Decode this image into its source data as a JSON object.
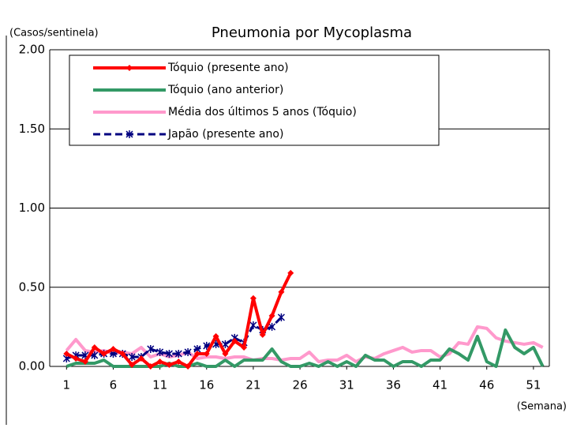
{
  "chart_data": {
    "type": "line",
    "title": "Pneumonia por Mycoplasma",
    "y_label": "(Casos/sentinela)",
    "x_label": "(Semana)",
    "x": [
      1,
      2,
      3,
      4,
      5,
      6,
      7,
      8,
      9,
      10,
      11,
      12,
      13,
      14,
      15,
      16,
      17,
      18,
      19,
      20,
      21,
      22,
      23,
      24,
      25,
      26,
      27,
      28,
      29,
      30,
      31,
      32,
      33,
      34,
      35,
      36,
      37,
      38,
      39,
      40,
      41,
      42,
      43,
      44,
      45,
      46,
      47,
      48,
      49,
      50,
      51,
      52
    ],
    "xlim": [
      -0.8,
      52.7
    ],
    "xticks": [
      1,
      6,
      11,
      16,
      21,
      26,
      31,
      36,
      41,
      46,
      51
    ],
    "ylim": [
      0,
      2
    ],
    "yticks": [
      {
        "value": 0,
        "label": "0.00"
      },
      {
        "value": 0.5,
        "label": "0.50"
      },
      {
        "value": 1,
        "label": "1.00"
      },
      {
        "value": 1.5,
        "label": "1.50"
      },
      {
        "value": 2,
        "label": "2.00"
      }
    ],
    "grid": true,
    "legend": "upper left",
    "series": [
      {
        "name": "Tóquio (presente ano)",
        "color": "#ff0000",
        "marker": "diamond",
        "dash": false,
        "width": 4,
        "values": [
          0.08,
          0.05,
          0.03,
          0.12,
          0.08,
          0.11,
          0.08,
          0.01,
          0.05,
          0.0,
          0.03,
          0.01,
          0.03,
          0.0,
          0.08,
          0.08,
          0.19,
          0.08,
          0.16,
          0.12,
          0.43,
          0.2,
          0.32,
          0.47,
          0.59,
          null,
          null,
          null,
          null,
          null,
          null,
          null,
          null,
          null,
          null,
          null,
          null,
          null,
          null,
          null,
          null,
          null,
          null,
          null,
          null,
          null,
          null,
          null,
          null,
          null,
          null,
          null
        ]
      },
      {
        "name": "Tóquio (ano anterior)",
        "color": "#339966",
        "marker": "none",
        "dash": false,
        "width": 4,
        "values": [
          0.0,
          0.02,
          0.02,
          0.02,
          0.04,
          0.0,
          0.0,
          0.0,
          0.0,
          0.0,
          0.0,
          0.02,
          0.0,
          0.0,
          0.02,
          0.0,
          0.0,
          0.04,
          0.0,
          0.04,
          0.04,
          0.04,
          0.11,
          0.03,
          0.0,
          0.0,
          0.02,
          0.0,
          0.03,
          0.0,
          0.03,
          0.0,
          0.07,
          0.04,
          0.04,
          0.0,
          0.03,
          0.03,
          0.0,
          0.04,
          0.04,
          0.11,
          0.08,
          0.04,
          0.19,
          0.03,
          0.0,
          0.23,
          0.12,
          0.08,
          0.12,
          0.0
        ]
      },
      {
        "name": "Média dos últimos 5 anos (Tóquio)",
        "color": "#ff99cc",
        "marker": "none",
        "dash": false,
        "width": 4,
        "values": [
          0.1,
          0.17,
          0.1,
          0.09,
          0.1,
          0.08,
          0.09,
          0.08,
          0.12,
          0.06,
          0.08,
          0.06,
          0.07,
          0.09,
          0.05,
          0.06,
          0.06,
          0.05,
          0.06,
          0.06,
          0.04,
          0.05,
          0.05,
          0.04,
          0.05,
          0.05,
          0.09,
          0.03,
          0.04,
          0.04,
          0.07,
          0.03,
          0.06,
          0.05,
          0.08,
          0.1,
          0.12,
          0.09,
          0.1,
          0.1,
          0.06,
          0.08,
          0.15,
          0.14,
          0.25,
          0.24,
          0.18,
          0.16,
          0.15,
          0.14,
          0.15,
          0.12
        ]
      },
      {
        "name": "Japão (presente ano)",
        "color": "#000080",
        "marker": "star",
        "dash": true,
        "width": 3,
        "values": [
          0.05,
          0.07,
          0.07,
          0.07,
          0.08,
          0.08,
          0.08,
          0.06,
          0.06,
          0.11,
          0.09,
          0.08,
          0.08,
          0.09,
          0.11,
          0.13,
          0.14,
          0.14,
          0.18,
          0.15,
          0.26,
          0.23,
          0.25,
          0.31,
          null,
          null,
          null,
          null,
          null,
          null,
          null,
          null,
          null,
          null,
          null,
          null,
          null,
          null,
          null,
          null,
          null,
          null,
          null,
          null,
          null,
          null,
          null,
          null,
          null,
          null,
          null,
          null
        ]
      }
    ]
  }
}
